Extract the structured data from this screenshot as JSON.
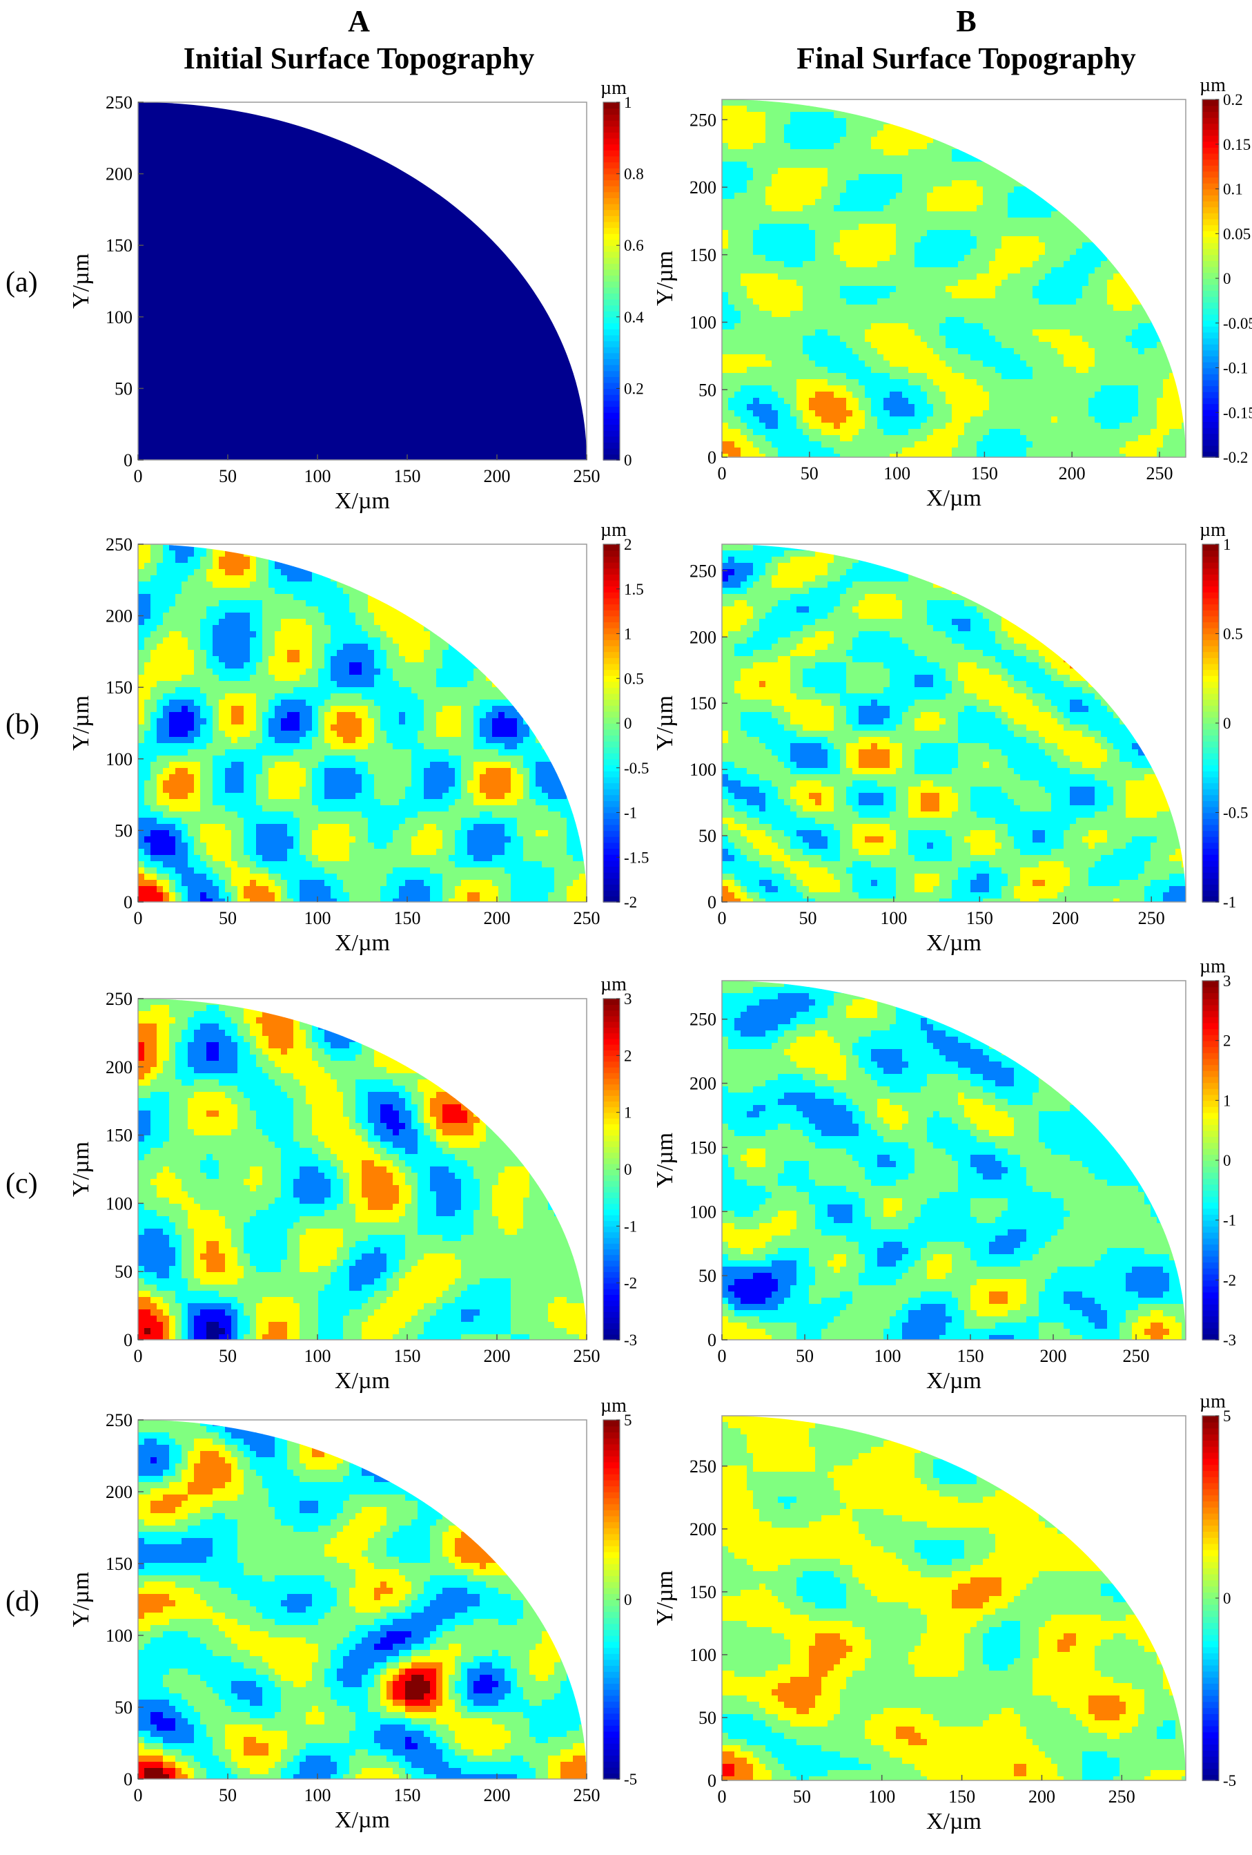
{
  "columns": [
    {
      "letter": "A",
      "title": "Initial Surface Topography"
    },
    {
      "letter": "B",
      "title": "Final Surface Topography"
    }
  ],
  "rows": [
    "(a)",
    "(b)",
    "(c)",
    "(d)"
  ],
  "colorbar_unit": "µm",
  "colormap": [
    "#00008f",
    "#0000ff",
    "#0080ff",
    "#00ffff",
    "#80ff80",
    "#ffff00",
    "#ff8000",
    "#ff0000",
    "#800000"
  ],
  "chart_data": [
    {
      "id": "Aa",
      "type": "heatmap",
      "column": "A",
      "row": "(a)",
      "region": "quarter-circle",
      "radius": 250,
      "xlabel": "X/µm",
      "ylabel": "Y/µm",
      "xlim": [
        0,
        250
      ],
      "ylim": [
        0,
        250
      ],
      "xticks": [
        "0",
        "50",
        "100",
        "150",
        "200",
        "250"
      ],
      "yticks": [
        "0",
        "50",
        "100",
        "150",
        "200",
        "250"
      ],
      "clim": [
        0,
        1
      ],
      "cticks": [
        "0",
        "0.2",
        "0.4",
        "0.6",
        "0.8",
        "1"
      ],
      "uniform_value": 0,
      "contours": false
    },
    {
      "id": "Ba",
      "type": "heatmap",
      "column": "B",
      "row": "(a)",
      "region": "quarter-circle",
      "radius": 265,
      "xlabel": "X/µm",
      "ylabel": "Y/µm",
      "xlim": [
        0,
        265
      ],
      "ylim": [
        0,
        265
      ],
      "xticks": [
        "0",
        "50",
        "100",
        "150",
        "200",
        "250"
      ],
      "yticks": [
        "0",
        "50",
        "100",
        "150",
        "200",
        "250"
      ],
      "clim": [
        -0.2,
        0.2
      ],
      "cticks": [
        "-0.2",
        "-0.15",
        "-0.1",
        "-0.05",
        "0",
        "0.05",
        "0.1",
        "0.15",
        "0.2"
      ],
      "base_value": 0.0,
      "amplitude": 0.09,
      "seed": 11,
      "contours": true
    },
    {
      "id": "Ab",
      "type": "heatmap",
      "column": "A",
      "row": "(b)",
      "region": "quarter-circle",
      "radius": 250,
      "xlabel": "X/µm",
      "ylabel": "Y/µm",
      "xlim": [
        0,
        250
      ],
      "ylim": [
        0,
        250
      ],
      "xticks": [
        "0",
        "50",
        "100",
        "150",
        "200",
        "250"
      ],
      "yticks": [
        "0",
        "50",
        "100",
        "150",
        "200",
        "250"
      ],
      "clim": [
        -2,
        2
      ],
      "cticks": [
        "-2",
        "-1.5",
        "-1",
        "-0.5",
        "0",
        "0.5",
        "1",
        "1.5",
        "2"
      ],
      "base_value": -0.2,
      "amplitude": 1.6,
      "seed": 23,
      "contours": true
    },
    {
      "id": "Bb",
      "type": "heatmap",
      "column": "B",
      "row": "(b)",
      "region": "quarter-circle",
      "radius": 270,
      "xlabel": "X/µm",
      "ylabel": "Y/µm",
      "xlim": [
        0,
        270
      ],
      "ylim": [
        0,
        270
      ],
      "xticks": [
        "0",
        "50",
        "100",
        "150",
        "200",
        "250"
      ],
      "yticks": [
        "0",
        "50",
        "100",
        "150",
        "200",
        "250"
      ],
      "clim": [
        -1,
        1
      ],
      "cticks": [
        "-1",
        "-0.5",
        "0",
        "0.5",
        "1"
      ],
      "base_value": -0.05,
      "amplitude": 0.65,
      "seed": 37,
      "contours": true
    },
    {
      "id": "Ac",
      "type": "heatmap",
      "column": "A",
      "row": "(c)",
      "region": "quarter-circle",
      "radius": 250,
      "xlabel": "X/µm",
      "ylabel": "Y/µm",
      "xlim": [
        0,
        250
      ],
      "ylim": [
        0,
        250
      ],
      "xticks": [
        "0",
        "50",
        "100",
        "150",
        "200",
        "250"
      ],
      "yticks": [
        "0",
        "50",
        "100",
        "150",
        "200",
        "250"
      ],
      "clim": [
        -3,
        3
      ],
      "cticks": [
        "-3",
        "-2",
        "-1",
        "0",
        "1",
        "2",
        "3"
      ],
      "base_value": -0.1,
      "amplitude": 2.4,
      "seed": 41,
      "contours": true
    },
    {
      "id": "Bc",
      "type": "heatmap",
      "column": "B",
      "row": "(c)",
      "region": "quarter-circle",
      "radius": 280,
      "xlabel": "X/µm",
      "ylabel": "Y/µm",
      "xlim": [
        0,
        280
      ],
      "ylim": [
        0,
        280
      ],
      "xticks": [
        "0",
        "50",
        "100",
        "150",
        "200",
        "250"
      ],
      "yticks": [
        "0",
        "50",
        "100",
        "150",
        "200",
        "250"
      ],
      "clim": [
        -3,
        3
      ],
      "cticks": [
        "-3",
        "-2",
        "-1",
        "0",
        "1",
        "2",
        "3"
      ],
      "base_value": -0.4,
      "amplitude": 1.9,
      "seed": 53,
      "contours": true
    },
    {
      "id": "Ad",
      "type": "heatmap",
      "column": "A",
      "row": "(d)",
      "region": "quarter-circle",
      "radius": 250,
      "xlabel": "X/µm",
      "ylabel": "Y/µm",
      "xlim": [
        0,
        250
      ],
      "ylim": [
        0,
        250
      ],
      "xticks": [
        "0",
        "50",
        "100",
        "150",
        "200",
        "250"
      ],
      "yticks": [
        "0",
        "50",
        "100",
        "150",
        "200",
        "250"
      ],
      "clim": [
        -5,
        5
      ],
      "cticks": [
        "-5",
        "0",
        "5"
      ],
      "base_value": -0.3,
      "amplitude": 4.2,
      "seed": 67,
      "contours": true
    },
    {
      "id": "Bd",
      "type": "heatmap",
      "column": "B",
      "row": "(d)",
      "region": "quarter-circle",
      "radius": 290,
      "xlabel": "X/µm",
      "ylabel": "Y/µm",
      "xlim": [
        0,
        290
      ],
      "ylim": [
        0,
        290
      ],
      "xticks": [
        "0",
        "50",
        "100",
        "150",
        "200",
        "250"
      ],
      "yticks": [
        "0",
        "50",
        "100",
        "150",
        "200",
        "250"
      ],
      "clim": [
        -5,
        5
      ],
      "cticks": [
        "-5",
        "0",
        "5"
      ],
      "base_value": 0.6,
      "amplitude": 2.8,
      "seed": 79,
      "contours": true
    }
  ]
}
